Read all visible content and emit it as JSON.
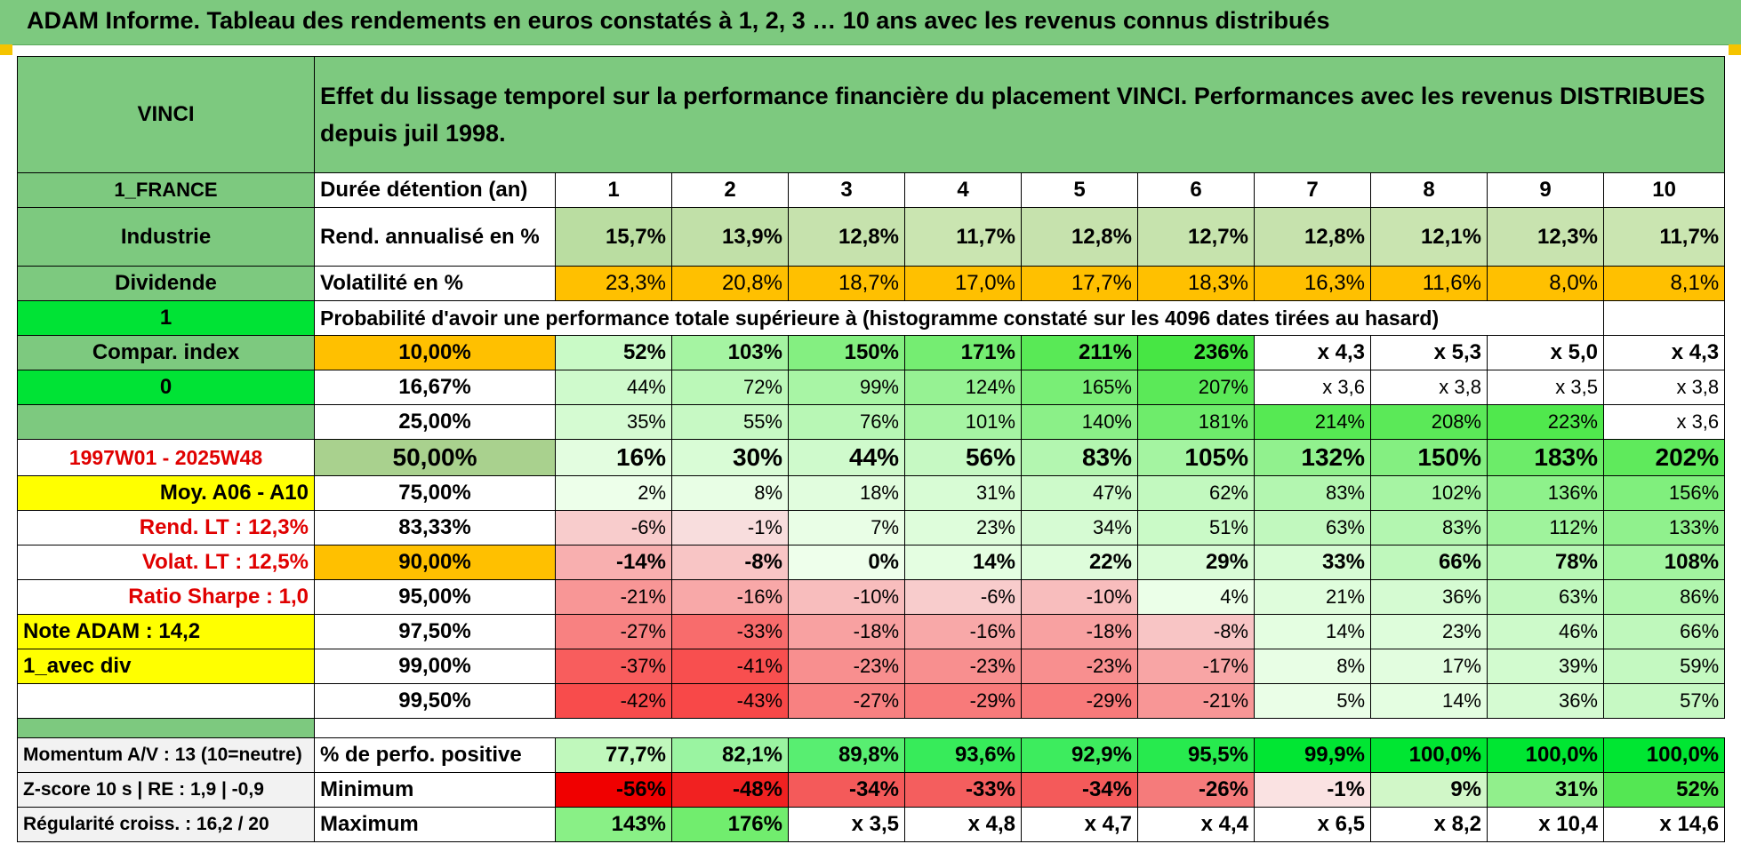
{
  "header": {
    "title": "ADAM Informe. Tableau des rendements en euros constatés à 1, 2, 3 … 10 ans avec les revenus connus distribués"
  },
  "left": {
    "name": "VINCI",
    "country": "1_FRANCE",
    "sector": "Industrie",
    "income": "Dividende",
    "flag1": "1",
    "compar": "Compar. index",
    "flag0": "0",
    "period": "1997W01 - 2025W48",
    "moy": "Moy. A06 - A10",
    "rend_lt": "Rend. LT :    12,3%",
    "volat_lt": "Volat. LT :    12,5%",
    "sharpe": "Ratio Sharpe :     1,0",
    "note": "Note ADAM : 14,2",
    "avecdiv": "1_avec div",
    "momentum": "Momentum A/V : 13 (10=neutre)",
    "zscore": "Z-score 10 s | RE : 1,9 | -0,9",
    "regularite": "Régularité croiss. : 16,2 / 20"
  },
  "table": {
    "subtitle": "Effet du lissage temporel sur la performance financière du placement VINCI. Performances avec les revenus DISTRIBUES depuis juil 1998.",
    "duration_label": "Durée détention (an)",
    "years": [
      "1",
      "2",
      "3",
      "4",
      "5",
      "6",
      "7",
      "8",
      "9",
      "10"
    ],
    "rend_label": "Rend. annualisé en %",
    "rend": [
      "15,7%",
      "13,9%",
      "12,8%",
      "11,7%",
      "12,8%",
      "12,7%",
      "12,8%",
      "12,1%",
      "12,3%",
      "11,7%"
    ],
    "vol_label": "Volatilité en %",
    "vol": [
      "23,3%",
      "20,8%",
      "18,7%",
      "17,0%",
      "17,7%",
      "18,3%",
      "16,3%",
      "11,6%",
      "8,0%",
      "8,1%"
    ],
    "proba_label": "Probabilité d'avoir une performance totale supérieure à (histogramme constaté sur les 4096 dates tirées au hasard)",
    "rows": [
      {
        "p": "10,00%",
        "v": [
          "52%",
          "103%",
          "150%",
          "171%",
          "211%",
          "236%",
          "x 4,3",
          "x 5,3",
          "x 5,0",
          "x 4,3"
        ]
      },
      {
        "p": "16,67%",
        "v": [
          "44%",
          "72%",
          "99%",
          "124%",
          "165%",
          "207%",
          "x 3,6",
          "x 3,8",
          "x 3,5",
          "x 3,8"
        ]
      },
      {
        "p": "25,00%",
        "v": [
          "35%",
          "55%",
          "76%",
          "101%",
          "140%",
          "181%",
          "214%",
          "208%",
          "223%",
          "x 3,6"
        ]
      },
      {
        "p": "50,00%",
        "v": [
          "16%",
          "30%",
          "44%",
          "56%",
          "83%",
          "105%",
          "132%",
          "150%",
          "183%",
          "202%"
        ]
      },
      {
        "p": "75,00%",
        "v": [
          "2%",
          "8%",
          "18%",
          "31%",
          "47%",
          "62%",
          "83%",
          "102%",
          "136%",
          "156%"
        ]
      },
      {
        "p": "83,33%",
        "v": [
          "-6%",
          "-1%",
          "7%",
          "23%",
          "34%",
          "51%",
          "63%",
          "83%",
          "112%",
          "133%"
        ]
      },
      {
        "p": "90,00%",
        "v": [
          "-14%",
          "-8%",
          "0%",
          "14%",
          "22%",
          "29%",
          "33%",
          "66%",
          "78%",
          "108%"
        ]
      },
      {
        "p": "95,00%",
        "v": [
          "-21%",
          "-16%",
          "-10%",
          "-6%",
          "-10%",
          "4%",
          "21%",
          "36%",
          "63%",
          "86%"
        ]
      },
      {
        "p": "97,50%",
        "v": [
          "-27%",
          "-33%",
          "-18%",
          "-16%",
          "-18%",
          "-8%",
          "14%",
          "23%",
          "46%",
          "66%"
        ]
      },
      {
        "p": "99,00%",
        "v": [
          "-37%",
          "-41%",
          "-23%",
          "-23%",
          "-23%",
          "-17%",
          "8%",
          "17%",
          "39%",
          "59%"
        ]
      },
      {
        "p": "99,50%",
        "v": [
          "-42%",
          "-43%",
          "-27%",
          "-29%",
          "-29%",
          "-21%",
          "5%",
          "14%",
          "36%",
          "57%"
        ]
      }
    ],
    "positive_label": "% de perfo. positive",
    "positive": [
      "77,7%",
      "82,1%",
      "89,8%",
      "93,6%",
      "92,9%",
      "95,5%",
      "99,9%",
      "100,0%",
      "100,0%",
      "100,0%"
    ],
    "min_label": "Minimum",
    "min": [
      "-56%",
      "-48%",
      "-34%",
      "-33%",
      "-34%",
      "-26%",
      "-1%",
      "9%",
      "31%",
      "52%"
    ],
    "max_label": "Maximum",
    "max": [
      "143%",
      "176%",
      "x 3,5",
      "x 4,8",
      "x 4,7",
      "x 4,4",
      "x 6,5",
      "x 8,2",
      "x 10,4",
      "x 14,6"
    ]
  },
  "colors": {
    "header_green": "#7dc97f",
    "bright_green": "#00e335",
    "orange": "#ffc000",
    "yellow": "#ffff00",
    "label_red": "#e00000"
  }
}
